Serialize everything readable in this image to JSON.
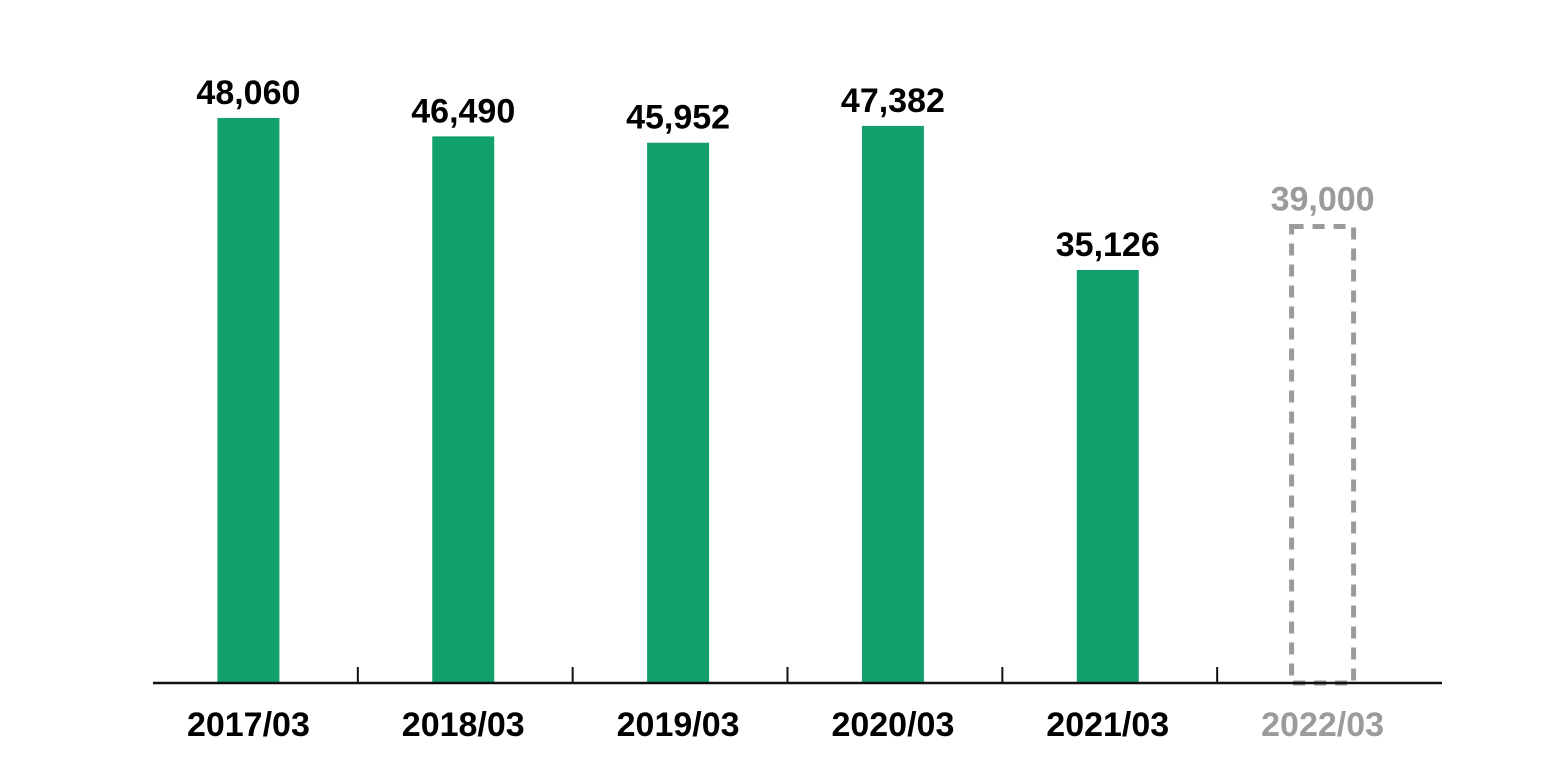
{
  "chart_data": {
    "type": "bar",
    "categories": [
      "2017/03",
      "2018/03",
      "2019/03",
      "2020/03",
      "2021/03",
      "2022/03"
    ],
    "values": [
      48060,
      46490,
      45952,
      47382,
      35126,
      39000
    ],
    "value_labels": [
      "48,060",
      "46,490",
      "45,952",
      "47,382",
      "35,126",
      "39,000"
    ],
    "forecast": [
      false,
      false,
      false,
      false,
      false,
      true
    ],
    "title": "",
    "xlabel": "",
    "ylabel": "",
    "ylim": [
      0,
      49500
    ],
    "grid": false,
    "legend": "none",
    "colors": {
      "bar": "#12a06c",
      "forecast": "#9b9b9b",
      "axis": "#111111",
      "label": "#000000"
    }
  }
}
